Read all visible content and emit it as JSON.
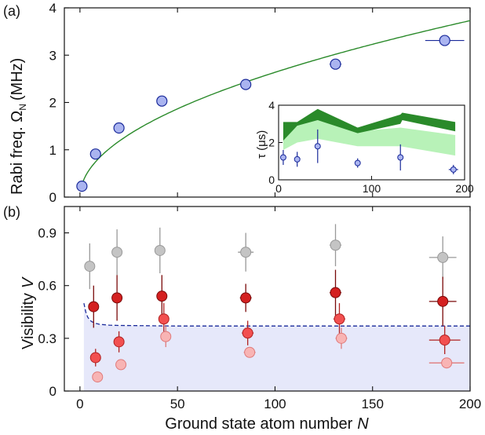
{
  "chart_data": [
    {
      "panel": "(a)",
      "type": "scatter",
      "ylabel": "Rabi freq. Ω",
      "ylabel_sub": "N",
      "ylabel_unit": "(MHz)",
      "xlim": [
        -8,
        200
      ],
      "ylim": [
        0,
        4
      ],
      "xticks": [
        0,
        50,
        100,
        150,
        200
      ],
      "yticks": [
        0,
        1,
        2,
        3,
        4
      ],
      "marker_color": "#aab4f0",
      "fit_color": "#2a8a2a",
      "points": [
        {
          "x": 1,
          "y": 0.23,
          "xerr": 0
        },
        {
          "x": 8,
          "y": 0.91,
          "xerr": 0
        },
        {
          "x": 20,
          "y": 1.46,
          "xerr": 0
        },
        {
          "x": 42,
          "y": 2.03,
          "xerr": 0
        },
        {
          "x": 85,
          "y": 2.38,
          "xerr": 2
        },
        {
          "x": 131,
          "y": 2.81,
          "xerr": 3
        },
        {
          "x": 187,
          "y": 3.31,
          "xerr": 10
        }
      ],
      "fit": {
        "model": "sqrt",
        "x_start": 1,
        "x_end": 205,
        "y_at_200": 3.73
      },
      "inset": {
        "ylabel": "τ (μs)",
        "xlim": [
          0,
          200
        ],
        "ylim": [
          0,
          4
        ],
        "xticks": [
          0,
          100,
          200
        ],
        "yticks": [
          0,
          2,
          4
        ],
        "dark_band_color": "#2a8a2a",
        "light_band_color": "#b8f2b8",
        "points": [
          {
            "x": 5,
            "y": 1.2,
            "yerr": 0.4,
            "xerr": 0
          },
          {
            "x": 20,
            "y": 1.1,
            "yerr": 0.4,
            "xerr": 0
          },
          {
            "x": 42,
            "y": 1.8,
            "yerr": 0.9,
            "xerr": 0
          },
          {
            "x": 85,
            "y": 0.9,
            "yerr": 0.25,
            "xerr": 0
          },
          {
            "x": 131,
            "y": 1.2,
            "yerr": 0.7,
            "xerr": 0
          },
          {
            "x": 188,
            "y": 0.55,
            "yerr": 0.25,
            "xerr": 5
          }
        ],
        "dark_band": {
          "x": [
            5,
            20,
            42,
            85,
            131,
            133,
            190
          ],
          "lower": [
            2.1,
            2.9,
            3.2,
            2.5,
            3.0,
            3.2,
            2.6
          ],
          "upper": [
            3.1,
            3.1,
            3.8,
            2.8,
            3.5,
            3.6,
            3.1
          ]
        },
        "light_band": {
          "x": [
            5,
            20,
            42,
            85,
            131,
            190
          ],
          "lower": [
            1.6,
            2.0,
            2.2,
            1.8,
            1.8,
            1.3
          ],
          "upper": [
            2.2,
            2.9,
            3.2,
            2.6,
            2.8,
            2.4
          ]
        }
      }
    },
    {
      "panel": "(b)",
      "type": "scatter",
      "xlabel": "Ground state atom number",
      "xlabel_var": "N",
      "ylabel": "Visibility",
      "ylabel_var": "V",
      "xlim": [
        -8,
        200
      ],
      "ylim": [
        0,
        1.05
      ],
      "xticks": [
        0,
        50,
        100,
        150,
        200
      ],
      "yticks": [
        0,
        0.3,
        0.6,
        0.9
      ],
      "ytick_labels": [
        "0",
        "0.3",
        "0.6",
        "0.9"
      ],
      "shade_color": "#e6e8fa",
      "dashed_color": "#1a2a9a",
      "dashed_curve": {
        "x": [
          2,
          3,
          4,
          5,
          6,
          8,
          10,
          15,
          20,
          30,
          40,
          50,
          75,
          100,
          150,
          200
        ],
        "y": [
          0.5,
          0.45,
          0.42,
          0.405,
          0.395,
          0.385,
          0.38,
          0.375,
          0.373,
          0.372,
          0.371,
          0.37,
          0.37,
          0.37,
          0.37,
          0.37
        ]
      },
      "series": [
        {
          "color": "#c4c4c4",
          "edge": "#999999",
          "points": [
            {
              "x": 5,
              "y": 0.71,
              "yerr": 0.13,
              "xerr": 0
            },
            {
              "x": 19,
              "y": 0.79,
              "yerr": 0.13,
              "xerr": 0
            },
            {
              "x": 41,
              "y": 0.8,
              "yerr": 0.13,
              "xerr": 0
            },
            {
              "x": 85,
              "y": 0.79,
              "yerr": 0.11,
              "xerr": 4
            },
            {
              "x": 131,
              "y": 0.83,
              "yerr": 0.12,
              "xerr": 3
            },
            {
              "x": 186,
              "y": 0.76,
              "yerr": 0.12,
              "xerr": 7
            }
          ]
        },
        {
          "color": "#d42020",
          "edge": "#7a0a0a",
          "points": [
            {
              "x": 7,
              "y": 0.48,
              "yerr": 0.12,
              "xerr": 0
            },
            {
              "x": 19,
              "y": 0.53,
              "yerr": 0.13,
              "xerr": 0
            },
            {
              "x": 42,
              "y": 0.54,
              "yerr": 0.12,
              "xerr": 0
            },
            {
              "x": 85,
              "y": 0.53,
              "yerr": 0.08,
              "xerr": 3
            },
            {
              "x": 131,
              "y": 0.56,
              "yerr": 0.13,
              "xerr": 3
            },
            {
              "x": 186,
              "y": 0.51,
              "yerr": 0.14,
              "xerr": 7
            }
          ]
        },
        {
          "color": "#f25050",
          "edge": "#b02020",
          "points": [
            {
              "x": 8,
              "y": 0.19,
              "yerr": 0.05,
              "xerr": 0
            },
            {
              "x": 20,
              "y": 0.28,
              "yerr": 0.06,
              "xerr": 0
            },
            {
              "x": 43,
              "y": 0.41,
              "yerr": 0.09,
              "xerr": 0
            },
            {
              "x": 86,
              "y": 0.33,
              "yerr": 0.07,
              "xerr": 3
            },
            {
              "x": 133,
              "y": 0.41,
              "yerr": 0.09,
              "xerr": 3
            },
            {
              "x": 187,
              "y": 0.29,
              "yerr": 0.08,
              "xerr": 8
            }
          ]
        },
        {
          "color": "#f8b4b4",
          "edge": "#e07a7a",
          "points": [
            {
              "x": 9,
              "y": 0.08,
              "yerr": 0.0,
              "xerr": 0
            },
            {
              "x": 21,
              "y": 0.15,
              "yerr": 0.0,
              "xerr": 0
            },
            {
              "x": 44,
              "y": 0.31,
              "yerr": 0.06,
              "xerr": 0
            },
            {
              "x": 87,
              "y": 0.22,
              "yerr": 0.0,
              "xerr": 3
            },
            {
              "x": 134,
              "y": 0.3,
              "yerr": 0.06,
              "xerr": 3
            },
            {
              "x": 188,
              "y": 0.16,
              "yerr": 0.0,
              "xerr": 9
            }
          ]
        }
      ]
    }
  ]
}
